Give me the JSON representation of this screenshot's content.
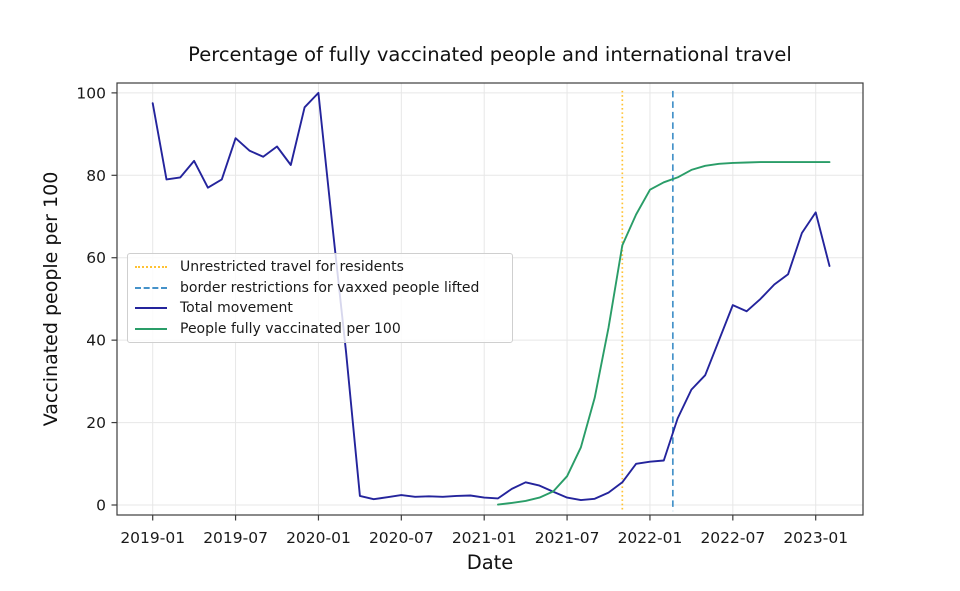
{
  "title": "Percentage of fully vaccinated people and international travel",
  "x_axis": {
    "label": "Date",
    "ticks": [
      "2019-01",
      "2019-07",
      "2020-01",
      "2020-07",
      "2021-01",
      "2021-07",
      "2022-01",
      "2022-07",
      "2023-01"
    ]
  },
  "y_axis": {
    "label": "Vaccinated people per 100",
    "ticks": [
      0,
      20,
      40,
      60,
      80,
      100
    ]
  },
  "legend": [
    {
      "label": "Unrestricted travel for residents",
      "style": "dotted",
      "color": "#ffc232"
    },
    {
      "label": "border restrictions for vaxxed people lifted",
      "style": "dashed",
      "color": "#4592c9"
    },
    {
      "label": "Total movement",
      "style": "solid",
      "color": "#24249c"
    },
    {
      "label": "People fully vaccinated per 100",
      "style": "solid",
      "color": "#2a9d68"
    }
  ],
  "colors": {
    "total_movement": "#24249c",
    "vaccinated": "#2a9d68",
    "unrestricted_travel_line": "#ffc232",
    "border_lifted_line": "#4592c9",
    "grid": "#e7e7e7",
    "spine": "#3c3c3c",
    "text": "#1a1a1a"
  },
  "chart_data": {
    "type": "line",
    "title": "Percentage of fully vaccinated people and international travel",
    "xlabel": "Date",
    "ylabel": "Vaccinated people per 100",
    "x_unit": "month",
    "xlim": [
      "2018-10",
      "2023-04"
    ],
    "ylim": [
      -2.5,
      102.5
    ],
    "grid": true,
    "legend_position": "center-left",
    "series": [
      {
        "name": "Total movement",
        "color": "#24249c",
        "style": "solid",
        "points": [
          [
            "2019-01",
            97.5
          ],
          [
            "2019-02",
            79.0
          ],
          [
            "2019-03",
            79.5
          ],
          [
            "2019-04",
            83.5
          ],
          [
            "2019-05",
            77.0
          ],
          [
            "2019-06",
            79.0
          ],
          [
            "2019-07",
            89.0
          ],
          [
            "2019-08",
            86.0
          ],
          [
            "2019-09",
            84.5
          ],
          [
            "2019-10",
            87.0
          ],
          [
            "2019-11",
            82.5
          ],
          [
            "2019-12",
            96.5
          ],
          [
            "2020-01",
            100.0
          ],
          [
            "2020-02",
            68.0
          ],
          [
            "2020-03",
            37.0
          ],
          [
            "2020-04",
            2.2
          ],
          [
            "2020-05",
            1.4
          ],
          [
            "2020-06",
            1.9
          ],
          [
            "2020-07",
            2.4
          ],
          [
            "2020-08",
            2.0
          ],
          [
            "2020-09",
            2.1
          ],
          [
            "2020-10",
            2.0
          ],
          [
            "2020-11",
            2.2
          ],
          [
            "2020-12",
            2.3
          ],
          [
            "2021-01",
            1.8
          ],
          [
            "2021-02",
            1.6
          ],
          [
            "2021-03",
            3.9
          ],
          [
            "2021-04",
            5.5
          ],
          [
            "2021-05",
            4.7
          ],
          [
            "2021-06",
            3.2
          ],
          [
            "2021-07",
            1.8
          ],
          [
            "2021-08",
            1.2
          ],
          [
            "2021-09",
            1.5
          ],
          [
            "2021-10",
            3.0
          ],
          [
            "2021-11",
            5.5
          ],
          [
            "2021-12",
            10.0
          ],
          [
            "2022-01",
            10.5
          ],
          [
            "2022-02",
            10.8
          ],
          [
            "2022-03",
            21.0
          ],
          [
            "2022-04",
            28.0
          ],
          [
            "2022-05",
            31.5
          ],
          [
            "2022-06",
            40.0
          ],
          [
            "2022-07",
            48.5
          ],
          [
            "2022-08",
            47.0
          ],
          [
            "2022-09",
            50.0
          ],
          [
            "2022-10",
            53.5
          ],
          [
            "2022-11",
            56.0
          ],
          [
            "2022-12",
            66.0
          ],
          [
            "2023-01",
            71.0
          ],
          [
            "2023-02",
            58.0
          ]
        ]
      },
      {
        "name": "People fully vaccinated per 100",
        "color": "#2a9d68",
        "style": "solid",
        "points": [
          [
            "2021-02",
            0.1
          ],
          [
            "2021-03",
            0.5
          ],
          [
            "2021-04",
            1.0
          ],
          [
            "2021-05",
            1.8
          ],
          [
            "2021-06",
            3.3
          ],
          [
            "2021-07",
            7.0
          ],
          [
            "2021-08",
            14.0
          ],
          [
            "2021-09",
            26.0
          ],
          [
            "2021-10",
            43.0
          ],
          [
            "2021-11",
            63.0
          ],
          [
            "2021-12",
            70.5
          ],
          [
            "2022-01",
            76.5
          ],
          [
            "2022-02",
            78.3
          ],
          [
            "2022-03",
            79.5
          ],
          [
            "2022-04",
            81.3
          ],
          [
            "2022-05",
            82.3
          ],
          [
            "2022-06",
            82.8
          ],
          [
            "2022-07",
            83.0
          ],
          [
            "2022-08",
            83.1
          ],
          [
            "2022-09",
            83.2
          ],
          [
            "2022-10",
            83.2
          ],
          [
            "2022-11",
            83.2
          ],
          [
            "2022-12",
            83.2
          ],
          [
            "2023-01",
            83.2
          ],
          [
            "2023-02",
            83.2
          ]
        ]
      }
    ],
    "event_lines": [
      {
        "label": "Unrestricted travel for residents",
        "date": "2021-11-01",
        "color": "#ffc232",
        "style": "dotted"
      },
      {
        "label": "border restrictions for vaxxed people lifted",
        "date": "2022-02-21",
        "color": "#4592c9",
        "style": "dashed"
      }
    ]
  }
}
